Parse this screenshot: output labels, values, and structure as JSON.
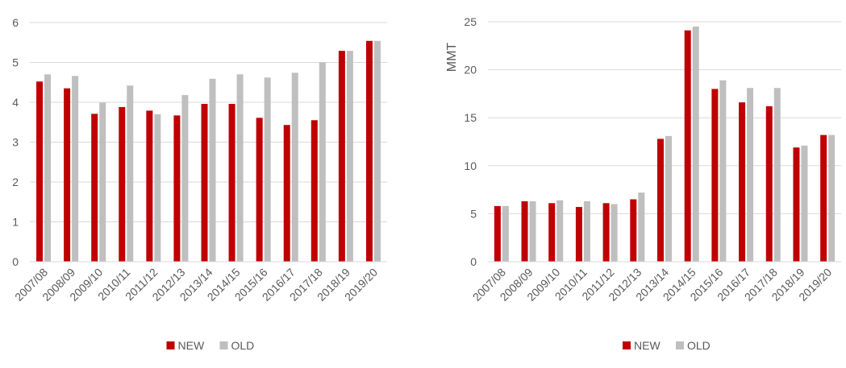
{
  "colors": {
    "new": "#C00000",
    "old": "#BFBFBF",
    "grid": "#D9D9D9",
    "text": "#595959"
  },
  "chart_data": [
    {
      "type": "bar",
      "title": "",
      "xlabel": "",
      "ylabel": "",
      "ylim": [
        0,
        6
      ],
      "yticks": [
        0,
        1,
        2,
        3,
        4,
        5,
        6
      ],
      "grid": true,
      "legend_position": "bottom-center",
      "categories": [
        "2007/08",
        "2008/09",
        "2009/10",
        "2010/11",
        "2011/12",
        "2012/13",
        "2013/14",
        "2014/15",
        "2015/16",
        "2016/17",
        "2017/18",
        "2018/19",
        "2019/20"
      ],
      "series": [
        {
          "name": "NEW",
          "values": [
            4.52,
            4.35,
            3.71,
            3.88,
            3.79,
            3.67,
            3.96,
            3.96,
            3.61,
            3.43,
            3.55,
            5.29,
            5.54
          ]
        },
        {
          "name": "OLD",
          "values": [
            4.7,
            4.66,
            3.99,
            4.42,
            3.7,
            4.18,
            4.59,
            4.7,
            4.62,
            4.74,
            5.0,
            5.29,
            5.54
          ]
        }
      ]
    },
    {
      "type": "bar",
      "title": "",
      "xlabel": "",
      "ylabel": "MMT",
      "ylim": [
        0,
        25
      ],
      "yticks": [
        0,
        5,
        10,
        15,
        20,
        25
      ],
      "grid": true,
      "legend_position": "bottom-center",
      "categories": [
        "2007/08",
        "2008/09",
        "2009/10",
        "2010/11",
        "2011/12",
        "2012/13",
        "2013/14",
        "2014/15",
        "2015/16",
        "2016/17",
        "2017/18",
        "2018/19",
        "2019/20"
      ],
      "series": [
        {
          "name": "NEW",
          "values": [
            5.8,
            6.3,
            6.1,
            5.7,
            6.1,
            6.5,
            12.8,
            24.1,
            18.0,
            16.6,
            16.2,
            11.9,
            13.2
          ]
        },
        {
          "name": "OLD",
          "values": [
            5.8,
            6.3,
            6.4,
            6.3,
            6.0,
            7.2,
            13.1,
            24.5,
            18.9,
            18.1,
            18.1,
            12.1,
            13.2
          ]
        }
      ]
    }
  ]
}
